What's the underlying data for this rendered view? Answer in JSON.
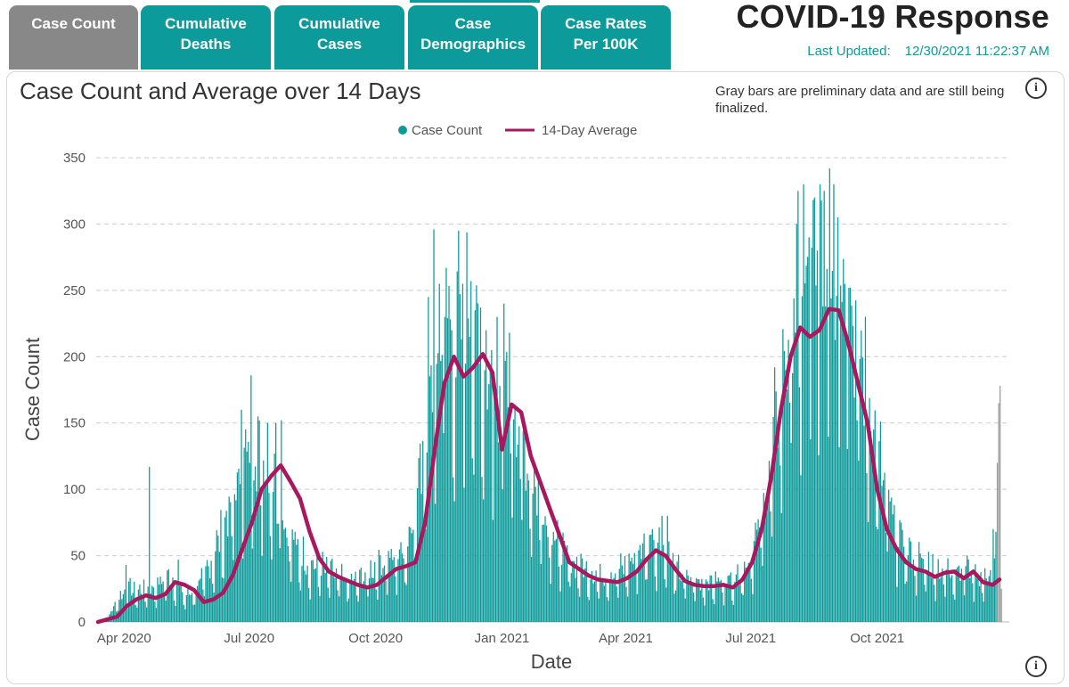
{
  "tabs": [
    {
      "label": "Case Count",
      "active": true
    },
    {
      "label": "Cumulative Deaths",
      "active": false
    },
    {
      "label": "Cumulative Cases",
      "active": false
    },
    {
      "label": "Case Demographics",
      "active": false
    },
    {
      "label": "Case Rates Per 100K",
      "active": false
    }
  ],
  "header": {
    "title": "COVID-19 Response",
    "updated_label": "Last Updated:",
    "updated_value": "12/30/2021 11:22:37 AM"
  },
  "panel": {
    "note": "Gray bars are preliminary data and are still being finalized.",
    "info_icon_glyph": "i"
  },
  "colors": {
    "bar": "#0c9a9a",
    "bar_preliminary": "#9a9a9a",
    "average": "#a8185f",
    "tab_active": "#888888",
    "tab": "#0c9a9a",
    "accent": "#0c9a9a"
  },
  "chart_data": {
    "type": "bar",
    "title": "Case Count and Average over 14 Days",
    "xlabel": "Date",
    "ylabel": "Case Count",
    "ylim": [
      0,
      350
    ],
    "yticks": [
      0,
      50,
      100,
      150,
      200,
      250,
      300,
      350
    ],
    "grid": true,
    "legend_position": "top-center",
    "x_start": "2020-03-13",
    "x_end": "2021-12-29",
    "xtick_labels": [
      {
        "date": "2020-04-01",
        "label": "Apr 2020"
      },
      {
        "date": "2020-07-01",
        "label": "Jul 2020"
      },
      {
        "date": "2020-10-01",
        "label": "Oct 2020"
      },
      {
        "date": "2021-01-01",
        "label": "Jan 2021"
      },
      {
        "date": "2021-04-01",
        "label": "Apr 2021"
      },
      {
        "date": "2021-07-01",
        "label": "Jul 2021"
      },
      {
        "date": "2021-10-01",
        "label": "Oct 2021"
      }
    ],
    "series": [
      {
        "name": "Case Count",
        "kind": "bar",
        "interpolation": "daily",
        "points": [
          [
            "2020-03-13",
            0
          ],
          [
            "2020-03-20",
            3
          ],
          [
            "2020-03-27",
            15
          ],
          [
            "2020-04-03",
            22
          ],
          [
            "2020-04-10",
            20
          ],
          [
            "2020-04-17",
            22
          ],
          [
            "2020-04-24",
            23
          ],
          [
            "2020-05-01",
            30
          ],
          [
            "2020-05-08",
            27
          ],
          [
            "2020-05-15",
            17
          ],
          [
            "2020-05-22",
            21
          ],
          [
            "2020-05-29",
            30
          ],
          [
            "2020-06-05",
            45
          ],
          [
            "2020-06-12",
            62
          ],
          [
            "2020-06-19",
            80
          ],
          [
            "2020-06-26",
            100
          ],
          [
            "2020-07-03",
            115
          ],
          [
            "2020-07-10",
            105
          ],
          [
            "2020-07-17",
            95
          ],
          [
            "2020-07-24",
            70
          ],
          [
            "2020-07-31",
            55
          ],
          [
            "2020-08-07",
            45
          ],
          [
            "2020-08-14",
            38
          ],
          [
            "2020-08-21",
            36
          ],
          [
            "2020-08-28",
            33
          ],
          [
            "2020-09-04",
            29
          ],
          [
            "2020-09-11",
            26
          ],
          [
            "2020-09-18",
            28
          ],
          [
            "2020-09-25",
            32
          ],
          [
            "2020-10-02",
            38
          ],
          [
            "2020-10-09",
            41
          ],
          [
            "2020-10-16",
            42
          ],
          [
            "2020-10-23",
            50
          ],
          [
            "2020-10-30",
            80
          ],
          [
            "2020-11-06",
            130
          ],
          [
            "2020-11-13",
            175
          ],
          [
            "2020-11-20",
            190
          ],
          [
            "2020-11-27",
            185
          ],
          [
            "2020-12-04",
            195
          ],
          [
            "2020-12-11",
            190
          ],
          [
            "2020-12-18",
            160
          ],
          [
            "2020-12-25",
            135
          ],
          [
            "2021-01-01",
            160
          ],
          [
            "2021-01-08",
            150
          ],
          [
            "2021-01-15",
            120
          ],
          [
            "2021-01-22",
            95
          ],
          [
            "2021-01-29",
            78
          ],
          [
            "2021-02-05",
            62
          ],
          [
            "2021-02-12",
            48
          ],
          [
            "2021-02-19",
            40
          ],
          [
            "2021-02-26",
            37
          ],
          [
            "2021-03-05",
            33
          ],
          [
            "2021-03-12",
            31
          ],
          [
            "2021-03-19",
            31
          ],
          [
            "2021-03-26",
            33
          ],
          [
            "2021-04-02",
            38
          ],
          [
            "2021-04-09",
            45
          ],
          [
            "2021-04-16",
            52
          ],
          [
            "2021-04-23",
            53
          ],
          [
            "2021-04-30",
            45
          ],
          [
            "2021-05-07",
            35
          ],
          [
            "2021-05-14",
            29
          ],
          [
            "2021-05-21",
            27
          ],
          [
            "2021-05-28",
            27
          ],
          [
            "2021-06-04",
            27
          ],
          [
            "2021-06-11",
            27
          ],
          [
            "2021-06-18",
            29
          ],
          [
            "2021-06-25",
            35
          ],
          [
            "2021-07-02",
            47
          ],
          [
            "2021-07-09",
            70
          ],
          [
            "2021-07-16",
            110
          ],
          [
            "2021-07-23",
            160
          ],
          [
            "2021-07-30",
            200
          ],
          [
            "2021-08-06",
            225
          ],
          [
            "2021-08-13",
            215
          ],
          [
            "2021-08-20",
            220
          ],
          [
            "2021-08-27",
            232
          ],
          [
            "2021-09-03",
            235
          ],
          [
            "2021-09-10",
            210
          ],
          [
            "2021-09-17",
            180
          ],
          [
            "2021-09-24",
            150
          ],
          [
            "2021-10-01",
            110
          ],
          [
            "2021-10-08",
            80
          ],
          [
            "2021-10-15",
            60
          ],
          [
            "2021-10-22",
            48
          ],
          [
            "2021-10-29",
            42
          ],
          [
            "2021-11-05",
            38
          ],
          [
            "2021-11-12",
            36
          ],
          [
            "2021-11-19",
            33
          ],
          [
            "2021-11-26",
            35
          ],
          [
            "2021-12-03",
            38
          ],
          [
            "2021-12-10",
            33
          ],
          [
            "2021-12-17",
            28
          ],
          [
            "2021-12-24",
            35
          ],
          [
            "2021-12-29",
            40
          ]
        ]
      },
      {
        "name": "14-Day Average",
        "kind": "line",
        "points": [
          [
            "2020-03-13",
            0
          ],
          [
            "2020-03-27",
            4
          ],
          [
            "2020-04-03",
            12
          ],
          [
            "2020-04-10",
            17
          ],
          [
            "2020-04-17",
            20
          ],
          [
            "2020-04-24",
            18
          ],
          [
            "2020-05-01",
            21
          ],
          [
            "2020-05-08",
            30
          ],
          [
            "2020-05-15",
            28
          ],
          [
            "2020-05-22",
            24
          ],
          [
            "2020-05-29",
            15
          ],
          [
            "2020-06-05",
            17
          ],
          [
            "2020-06-12",
            22
          ],
          [
            "2020-06-19",
            35
          ],
          [
            "2020-06-26",
            55
          ],
          [
            "2020-07-03",
            75
          ],
          [
            "2020-07-10",
            100
          ],
          [
            "2020-07-17",
            110
          ],
          [
            "2020-07-24",
            118
          ],
          [
            "2020-07-31",
            106
          ],
          [
            "2020-08-07",
            93
          ],
          [
            "2020-08-14",
            68
          ],
          [
            "2020-08-21",
            48
          ],
          [
            "2020-08-28",
            38
          ],
          [
            "2020-09-04",
            34
          ],
          [
            "2020-09-11",
            31
          ],
          [
            "2020-09-18",
            28
          ],
          [
            "2020-09-25",
            26
          ],
          [
            "2020-10-02",
            28
          ],
          [
            "2020-10-09",
            34
          ],
          [
            "2020-10-16",
            40
          ],
          [
            "2020-10-23",
            42
          ],
          [
            "2020-10-30",
            45
          ],
          [
            "2020-11-06",
            75
          ],
          [
            "2020-11-13",
            130
          ],
          [
            "2020-11-20",
            180
          ],
          [
            "2020-11-27",
            200
          ],
          [
            "2020-12-04",
            185
          ],
          [
            "2020-12-11",
            192
          ],
          [
            "2020-12-18",
            202
          ],
          [
            "2020-12-25",
            188
          ],
          [
            "2021-01-01",
            130
          ],
          [
            "2021-01-08",
            164
          ],
          [
            "2021-01-15",
            158
          ],
          [
            "2021-01-22",
            125
          ],
          [
            "2021-01-29",
            105
          ],
          [
            "2021-02-05",
            85
          ],
          [
            "2021-02-12",
            65
          ],
          [
            "2021-02-19",
            45
          ],
          [
            "2021-02-26",
            40
          ],
          [
            "2021-03-05",
            35
          ],
          [
            "2021-03-12",
            32
          ],
          [
            "2021-03-19",
            31
          ],
          [
            "2021-03-26",
            30
          ],
          [
            "2021-04-02",
            33
          ],
          [
            "2021-04-09",
            38
          ],
          [
            "2021-04-16",
            47
          ],
          [
            "2021-04-23",
            54
          ],
          [
            "2021-04-30",
            50
          ],
          [
            "2021-05-07",
            40
          ],
          [
            "2021-05-14",
            31
          ],
          [
            "2021-05-21",
            28
          ],
          [
            "2021-05-28",
            27
          ],
          [
            "2021-06-04",
            27
          ],
          [
            "2021-06-11",
            28
          ],
          [
            "2021-06-18",
            26
          ],
          [
            "2021-06-25",
            32
          ],
          [
            "2021-07-02",
            45
          ],
          [
            "2021-07-09",
            70
          ],
          [
            "2021-07-16",
            110
          ],
          [
            "2021-07-23",
            160
          ],
          [
            "2021-07-30",
            200
          ],
          [
            "2021-08-06",
            222
          ],
          [
            "2021-08-13",
            215
          ],
          [
            "2021-08-20",
            220
          ],
          [
            "2021-08-27",
            236
          ],
          [
            "2021-09-03",
            235
          ],
          [
            "2021-09-10",
            210
          ],
          [
            "2021-09-17",
            180
          ],
          [
            "2021-09-24",
            150
          ],
          [
            "2021-10-01",
            100
          ],
          [
            "2021-10-08",
            70
          ],
          [
            "2021-10-15",
            55
          ],
          [
            "2021-10-22",
            45
          ],
          [
            "2021-10-29",
            40
          ],
          [
            "2021-11-05",
            38
          ],
          [
            "2021-11-12",
            34
          ],
          [
            "2021-11-19",
            37
          ],
          [
            "2021-11-26",
            38
          ],
          [
            "2021-12-03",
            33
          ],
          [
            "2021-12-10",
            38
          ],
          [
            "2021-12-17",
            30
          ],
          [
            "2021-12-24",
            28
          ],
          [
            "2021-12-29",
            32
          ]
        ]
      }
    ],
    "peak_bars": [
      [
        "2020-04-19",
        117
      ],
      [
        "2020-04-02",
        43
      ],
      [
        "2020-05-10",
        47
      ],
      [
        "2020-06-25",
        160
      ],
      [
        "2020-07-02",
        186
      ],
      [
        "2020-07-07",
        155
      ],
      [
        "2020-07-14",
        150
      ],
      [
        "2020-07-20",
        150
      ],
      [
        "2020-07-24",
        152
      ],
      [
        "2020-11-08",
        245
      ],
      [
        "2020-11-12",
        296
      ],
      [
        "2020-11-16",
        255
      ],
      [
        "2020-11-20",
        230
      ],
      [
        "2020-11-25",
        220
      ],
      [
        "2020-11-30",
        295
      ],
      [
        "2020-12-03",
        255
      ],
      [
        "2020-12-08",
        215
      ],
      [
        "2020-12-12",
        235
      ],
      [
        "2020-12-16",
        237
      ],
      [
        "2020-12-20",
        220
      ],
      [
        "2020-12-24",
        205
      ],
      [
        "2020-12-28",
        230
      ],
      [
        "2021-01-02",
        240
      ],
      [
        "2021-01-06",
        218
      ],
      [
        "2021-04-20",
        70
      ],
      [
        "2021-04-27",
        80
      ],
      [
        "2021-05-01",
        80
      ],
      [
        "2021-08-03",
        300
      ],
      [
        "2021-08-08",
        330
      ],
      [
        "2021-08-12",
        290
      ],
      [
        "2021-08-16",
        320
      ],
      [
        "2021-08-20",
        330
      ],
      [
        "2021-08-23",
        325
      ],
      [
        "2021-08-27",
        342
      ],
      [
        "2021-08-30",
        330
      ],
      [
        "2021-09-02",
        305
      ],
      [
        "2021-09-07",
        255
      ],
      [
        "2021-09-10",
        252
      ],
      [
        "2021-12-24",
        70
      ],
      [
        "2021-12-26",
        68
      ]
    ],
    "preliminary_bars": [
      [
        "2021-12-27",
        120
      ],
      [
        "2021-12-28",
        165
      ],
      [
        "2021-12-29",
        178
      ],
      [
        "2021-12-30",
        25
      ]
    ]
  }
}
